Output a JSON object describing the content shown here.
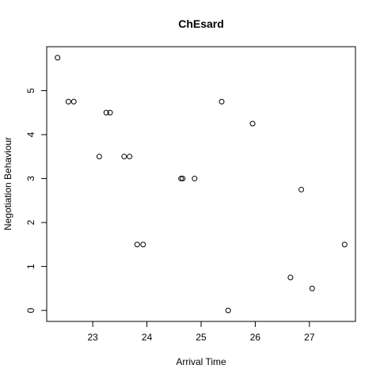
{
  "chart_data": {
    "type": "scatter",
    "title": "ChEsard",
    "xlabel": "Arrival Time",
    "ylabel": "Negotiation Behaviour",
    "xlim": [
      22.15,
      27.85
    ],
    "ylim": [
      -0.25,
      6.0
    ],
    "xticks": [
      23,
      24,
      25,
      26,
      27
    ],
    "yticks": [
      0,
      1,
      2,
      3,
      4,
      5
    ],
    "grid": false,
    "legend": false,
    "points": [
      {
        "x": 22.35,
        "y": 5.75
      },
      {
        "x": 22.55,
        "y": 4.75
      },
      {
        "x": 22.65,
        "y": 4.75
      },
      {
        "x": 23.12,
        "y": 3.5
      },
      {
        "x": 23.25,
        "y": 4.5
      },
      {
        "x": 23.32,
        "y": 4.5
      },
      {
        "x": 23.58,
        "y": 3.5
      },
      {
        "x": 23.68,
        "y": 3.5
      },
      {
        "x": 23.82,
        "y": 1.5
      },
      {
        "x": 23.93,
        "y": 1.5
      },
      {
        "x": 24.63,
        "y": 3.0
      },
      {
        "x": 24.66,
        "y": 3.0
      },
      {
        "x": 24.88,
        "y": 3.0
      },
      {
        "x": 25.38,
        "y": 4.75
      },
      {
        "x": 25.5,
        "y": 0.0
      },
      {
        "x": 25.95,
        "y": 4.25
      },
      {
        "x": 26.65,
        "y": 0.75
      },
      {
        "x": 26.85,
        "y": 2.75
      },
      {
        "x": 27.05,
        "y": 0.5
      },
      {
        "x": 27.65,
        "y": 1.5
      }
    ]
  }
}
